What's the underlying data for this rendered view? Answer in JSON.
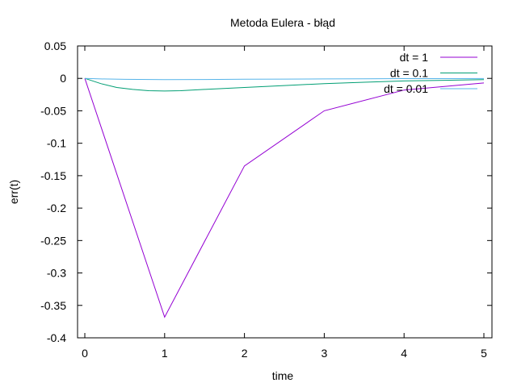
{
  "chart_data": {
    "type": "line",
    "title": "Metoda Eulera - błąd",
    "xlabel": "time",
    "ylabel": "err(t)",
    "xlim": [
      0,
      5
    ],
    "ylim": [
      -0.4,
      0.05
    ],
    "xticks": [
      0,
      1,
      2,
      3,
      4,
      5
    ],
    "yticks": [
      0.05,
      0,
      -0.05,
      -0.1,
      -0.15,
      -0.2,
      -0.25,
      -0.3,
      -0.35,
      -0.4
    ],
    "grid": false,
    "legend_position": "top-right",
    "series": [
      {
        "name": "dt = 1",
        "color": "#9400d3",
        "points": [
          [
            0,
            0
          ],
          [
            1,
            -0.368
          ],
          [
            2,
            -0.135
          ],
          [
            3,
            -0.05
          ],
          [
            4,
            -0.018
          ],
          [
            5,
            -0.007
          ]
        ]
      },
      {
        "name": "dt = 0.1",
        "color": "#009e73",
        "points": [
          [
            0,
            0
          ],
          [
            0.2,
            -0.008
          ],
          [
            0.4,
            -0.014
          ],
          [
            0.6,
            -0.017
          ],
          [
            0.8,
            -0.019
          ],
          [
            1.0,
            -0.0195
          ],
          [
            1.2,
            -0.019
          ],
          [
            1.5,
            -0.017
          ],
          [
            2.0,
            -0.014
          ],
          [
            2.5,
            -0.011
          ],
          [
            3.0,
            -0.008
          ],
          [
            3.5,
            -0.006
          ],
          [
            4.0,
            -0.004
          ],
          [
            4.5,
            -0.003
          ],
          [
            5.0,
            -0.002
          ]
        ]
      },
      {
        "name": "dt = 0.01",
        "color": "#56b4e9",
        "points": [
          [
            0,
            0
          ],
          [
            0.2,
            -0.0008
          ],
          [
            0.5,
            -0.0015
          ],
          [
            1.0,
            -0.0018
          ],
          [
            1.5,
            -0.0017
          ],
          [
            2.0,
            -0.0014
          ],
          [
            2.5,
            -0.0011
          ],
          [
            3.0,
            -0.0008
          ],
          [
            3.5,
            -0.0006
          ],
          [
            4.0,
            -0.0004
          ],
          [
            4.5,
            -0.0003
          ],
          [
            5.0,
            -0.0002
          ]
        ]
      }
    ]
  }
}
